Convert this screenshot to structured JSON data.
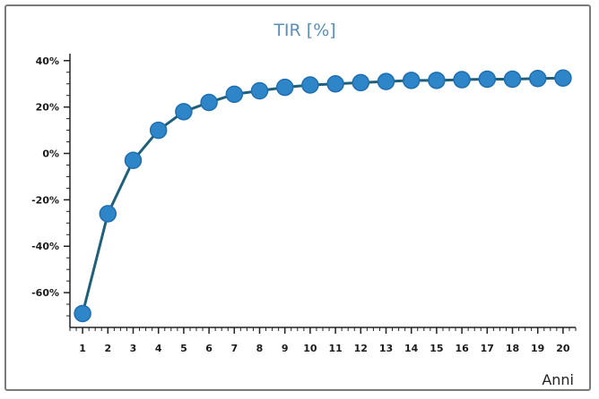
{
  "chart_data": {
    "type": "line",
    "title": "TIR [%]",
    "xlabel": "Anni",
    "ylabel": "",
    "x": [
      1,
      2,
      3,
      4,
      5,
      6,
      7,
      8,
      9,
      10,
      11,
      12,
      13,
      14,
      15,
      16,
      17,
      18,
      19,
      20
    ],
    "series": [
      {
        "values": [
          -69,
          -26,
          -3,
          10,
          18,
          22,
          25.5,
          27,
          28.5,
          29.5,
          30,
          30.5,
          31,
          31.5,
          31.5,
          31.8,
          32,
          32,
          32.3,
          32.5
        ]
      }
    ],
    "xlim": [
      0.5,
      20.5
    ],
    "ylim": [
      -75,
      43
    ],
    "y_ticks": [
      40,
      20,
      0,
      -20,
      -40,
      -60
    ],
    "y_tick_labels": [
      "40%",
      "20%",
      "0%",
      "-20%",
      "-40%",
      "-60%"
    ],
    "x_tick_labels": [
      "1",
      "2",
      "3",
      "4",
      "5",
      "6",
      "7",
      "8",
      "9",
      "10",
      "11",
      "12",
      "13",
      "14",
      "15",
      "16",
      "17",
      "18",
      "19",
      "20"
    ],
    "grid": false,
    "legend": "none",
    "colors": {
      "line": "#1f5f7a",
      "marker": "#2e86c8",
      "marker_edge": "#1f6fb0",
      "title": "#5a8fb8"
    }
  }
}
